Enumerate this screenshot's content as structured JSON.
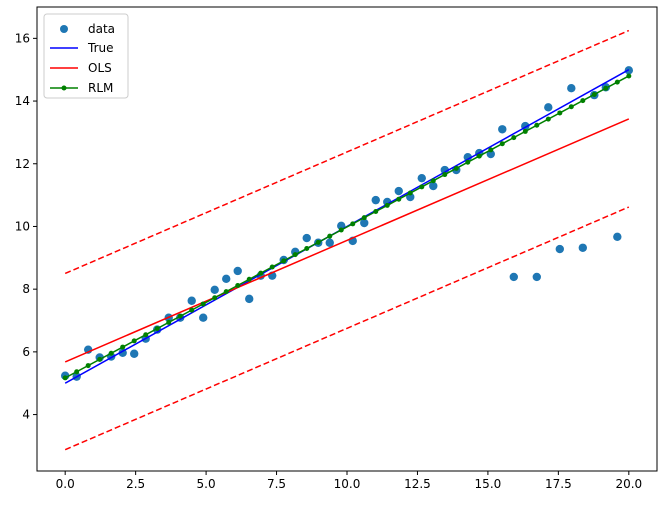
{
  "chart_data": {
    "type": "line",
    "xlim": [
      -1.0,
      21.0
    ],
    "ylim": [
      2.2,
      17.0
    ],
    "xticks": [
      "0.0",
      "2.5",
      "5.0",
      "7.5",
      "10.0",
      "12.5",
      "15.0",
      "17.5",
      "20.0"
    ],
    "yticks": [
      "4",
      "6",
      "8",
      "10",
      "12",
      "14",
      "16"
    ],
    "grid": false,
    "legend_placement": "upper-left",
    "legend": [
      "data",
      "True",
      "OLS",
      "RLM"
    ],
    "colors": {
      "data": "#1f77b4",
      "True": "#0000ff",
      "OLS": "#ff0000",
      "RLM": "#008000"
    },
    "data_x_range": [
      0,
      20
    ],
    "data_y": [
      5.24,
      5.21,
      6.07,
      5.82,
      5.85,
      5.97,
      5.94,
      6.42,
      6.71,
      7.09,
      7.09,
      7.63,
      7.09,
      7.98,
      8.33,
      8.58,
      7.69,
      8.43,
      8.43,
      8.93,
      9.19,
      9.63,
      9.48,
      9.48,
      10.02,
      9.54,
      10.11,
      10.84,
      10.78,
      11.13,
      10.94,
      11.54,
      11.29,
      11.8,
      11.8,
      12.21,
      12.34,
      12.31,
      13.1,
      8.39,
      13.2,
      8.39,
      13.8,
      9.28,
      14.41,
      9.32,
      14.19,
      14.44,
      9.67,
      14.98
    ],
    "true_line": [
      5.0,
      15.0
    ],
    "ols_line": [
      5.68,
      13.43
    ],
    "ols_upper": [
      8.5,
      16.25
    ],
    "ols_lower": [
      2.88,
      10.62
    ],
    "rlm_line": [
      5.17,
      14.8
    ]
  }
}
